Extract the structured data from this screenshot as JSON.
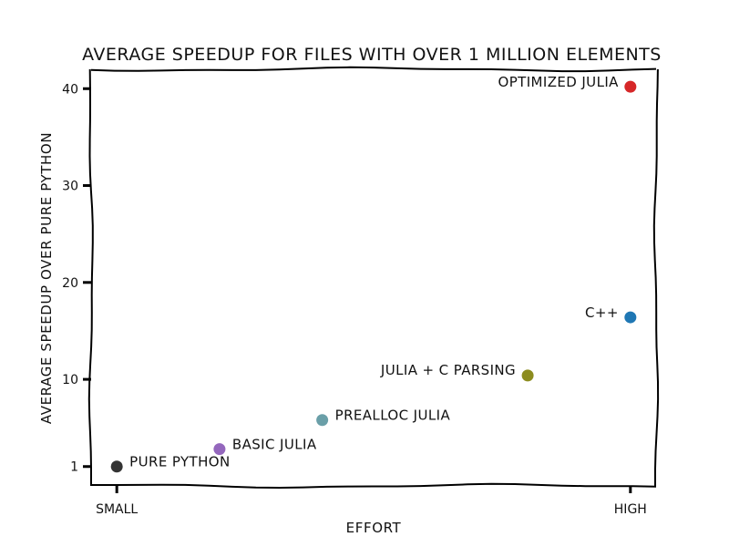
{
  "chart_data": {
    "type": "scatter",
    "title": "AVERAGE SPEEDUP FOR FILES WITH OVER 1 MILLION ELEMENTS",
    "xlabel": "EFFORT",
    "ylabel": "AVERAGE SPEEDUP OVER PURE PYTHON",
    "x_ticks": [
      {
        "value": 0,
        "label": "SMALL"
      },
      {
        "value": 1,
        "label": "HIGH"
      }
    ],
    "y_ticks": [
      1,
      10,
      20,
      30,
      40
    ],
    "xlim": [
      -0.05,
      1.05
    ],
    "ylim": [
      -1.0,
      42.0
    ],
    "grid": false,
    "points": [
      {
        "label": "PURE PYTHON",
        "x": 0.0,
        "y": 1.0,
        "color": "#333333",
        "label_side": "right"
      },
      {
        "label": "BASIC JULIA",
        "x": 0.2,
        "y": 2.8,
        "color": "#9467bd",
        "label_side": "right"
      },
      {
        "label": "PREALLOC JULIA",
        "x": 0.4,
        "y": 5.8,
        "color": "#6a9fa8",
        "label_side": "right"
      },
      {
        "label": "JULIA + C PARSING",
        "x": 0.8,
        "y": 10.4,
        "color": "#8c8c1f",
        "label_side": "left"
      },
      {
        "label": "C++",
        "x": 1.0,
        "y": 16.4,
        "color": "#1f77b4",
        "label_side": "left"
      },
      {
        "label": "OPTIMIZED JULIA",
        "x": 1.0,
        "y": 40.2,
        "color": "#d62728",
        "label_side": "left"
      }
    ]
  }
}
